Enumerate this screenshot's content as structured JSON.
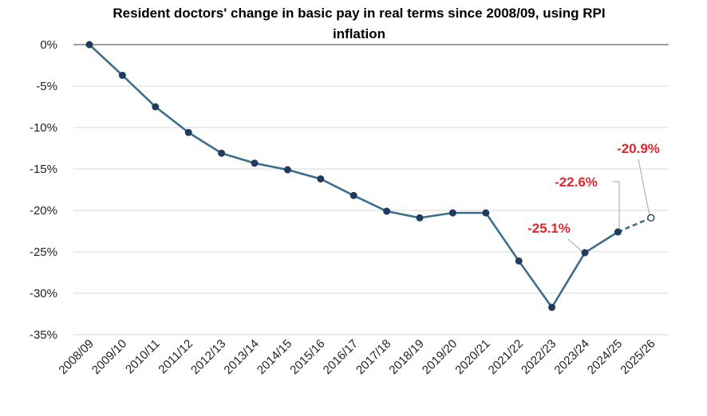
{
  "chart_data": {
    "type": "line",
    "title_line1": "Resident doctors' change in basic pay in real terms since 2008/09, using RPI",
    "title_line2": "inflation",
    "categories": [
      "2008/09",
      "2009/10",
      "2010/11",
      "2011/12",
      "2012/13",
      "2013/14",
      "2014/15",
      "2015/16",
      "2016/17",
      "2017/18",
      "2018/19",
      "2019/20",
      "2020/21",
      "2021/22",
      "2022/23",
      "2023/24",
      "2024/25",
      "2025/26"
    ],
    "series": [
      {
        "values": [
          0,
          -3.7,
          -7.5,
          -10.6,
          -13.1,
          -14.3,
          -15.1,
          -16.2,
          -18.2,
          -20.1,
          -20.9,
          -20.3,
          -20.3,
          -26.1,
          -31.7,
          -25.1,
          -22.6,
          -20.9
        ],
        "projected_from_index": 16
      }
    ],
    "ylim": [
      -35,
      0
    ],
    "yticks": [
      0,
      -5,
      -10,
      -15,
      -20,
      -25,
      -30,
      -35
    ],
    "ytick_labels": [
      "0%",
      "-5%",
      "-10%",
      "-15%",
      "-20%",
      "-25%",
      "-30%",
      "-35%"
    ],
    "annotations": [
      {
        "index": 15,
        "text": "-25.1%"
      },
      {
        "index": 16,
        "text": "-22.6%"
      },
      {
        "index": 17,
        "text": "-20.9%"
      }
    ],
    "grid": true,
    "colors": {
      "line": "#3d6e8c",
      "marker": "#1f3c5e",
      "annotation": "#e8242d",
      "grid": "#d9d9d9",
      "zero_line": "#7f7f7f"
    }
  }
}
